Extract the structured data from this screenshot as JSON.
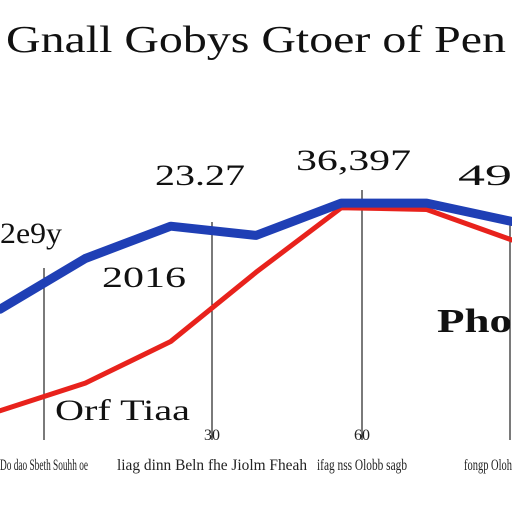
{
  "chart_data": {
    "type": "line",
    "title": "Gnall Gobys Gtoer of Pen",
    "x": [
      0,
      1,
      2,
      3,
      4,
      5,
      6
    ],
    "x_tick_labels": [
      "Do dao Sbeth Souhh oe",
      "liag dinn Beln fhe Jiolm Fheah",
      "ifag nss Olobb sagb",
      "fongp Oloh"
    ],
    "series": [
      {
        "name": "",
        "color": "#1f3fb5",
        "values": [
          120,
          175,
          210,
          200,
          235,
          235,
          215
        ]
      },
      {
        "name": "",
        "color": "#e8221c",
        "values": [
          10,
          40,
          85,
          160,
          230,
          228,
          195
        ]
      }
    ],
    "annotations": [
      {
        "text": "2e9y"
      },
      {
        "text": "23.27"
      },
      {
        "text": "36,397"
      },
      {
        "text": "49"
      },
      {
        "text": "2016"
      },
      {
        "text": "Pho"
      },
      {
        "text": "Orf Tiaa"
      }
    ],
    "tick_marks": [
      "",
      "30",
      "60",
      ""
    ],
    "ylim": [
      0,
      260
    ],
    "grid": false
  }
}
